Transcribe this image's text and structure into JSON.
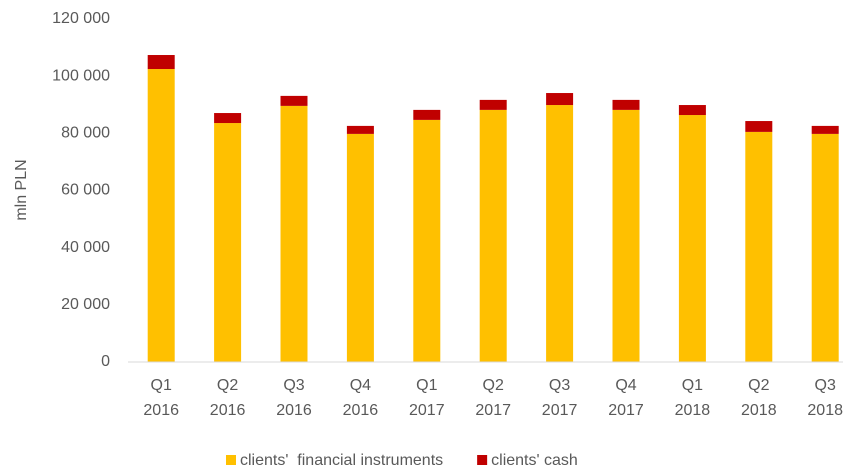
{
  "chart_data": {
    "type": "bar",
    "stacked": true,
    "y_label": "mln PLN",
    "categories": [
      [
        "Q1",
        "2016"
      ],
      [
        "Q2",
        "2016"
      ],
      [
        "Q3",
        "2016"
      ],
      [
        "Q4",
        "2016"
      ],
      [
        "Q1",
        "2017"
      ],
      [
        "Q2",
        "2017"
      ],
      [
        "Q3",
        "2017"
      ],
      [
        "Q4",
        "2017"
      ],
      [
        "Q1",
        "2018"
      ],
      [
        "Q2",
        "2018"
      ],
      [
        "Q3",
        "2018"
      ]
    ],
    "series": [
      {
        "name": "clients'  financial instruments",
        "color": "#FFC000",
        "values": [
          102500,
          83600,
          89600,
          79800,
          84700,
          88200,
          89900,
          88200,
          86400,
          80500,
          79800
        ]
      },
      {
        "name": "clients' cash",
        "color": "#C00000",
        "values": [
          4900,
          3500,
          3500,
          2800,
          3500,
          3500,
          4200,
          3500,
          3500,
          3800,
          2800
        ]
      }
    ],
    "ylim": [
      0,
      120000
    ],
    "yticks": [
      0,
      {
        "value": 20000,
        "label": "20 000"
      },
      {
        "value": 40000,
        "label": "40 000"
      },
      {
        "value": 60000,
        "label": "60 000"
      },
      {
        "value": 80000,
        "label": "80 000"
      },
      {
        "value": 100000,
        "label": "100 000"
      },
      {
        "value": 120000,
        "label": "120 000"
      }
    ],
    "grid": false,
    "legend": "bottom"
  }
}
